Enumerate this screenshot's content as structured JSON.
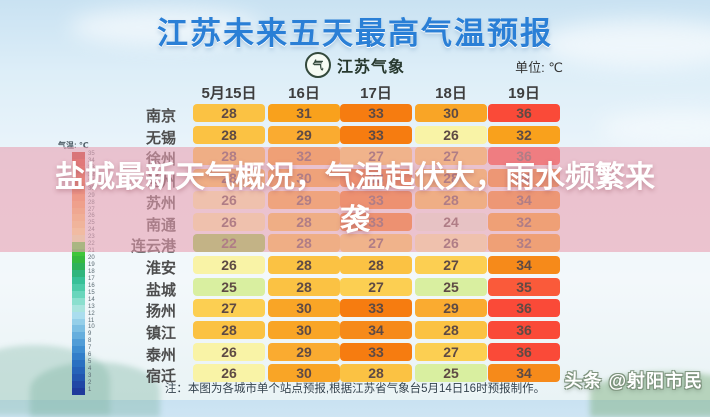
{
  "header": {
    "title": "江苏未来五天最高气温预报",
    "logo_text": "江苏气象",
    "logo_glyph": "气",
    "unit_label": "单位: ℃"
  },
  "overlay": {
    "headline": "盐城最新天气概况，气温起伏大，雨水频繁来袭"
  },
  "table": {
    "columns": [
      "5月15日",
      "16日",
      "17日",
      "18日",
      "19日"
    ],
    "rows": [
      {
        "city": "南京",
        "temps": [
          28,
          31,
          33,
          30,
          36
        ]
      },
      {
        "city": "无锡",
        "temps": [
          28,
          29,
          33,
          26,
          32
        ]
      },
      {
        "city": "徐州",
        "temps": [
          28,
          32,
          27,
          27,
          36
        ]
      },
      {
        "city": "常州",
        "temps": [
          28,
          30,
          33,
          28,
          34
        ]
      },
      {
        "city": "苏州",
        "temps": [
          26,
          29,
          33,
          28,
          34
        ]
      },
      {
        "city": "南通",
        "temps": [
          26,
          28,
          33,
          24,
          32
        ]
      },
      {
        "city": "连云港",
        "temps": [
          22,
          28,
          27,
          26,
          32
        ]
      },
      {
        "city": "淮安",
        "temps": [
          26,
          28,
          28,
          27,
          34
        ]
      },
      {
        "city": "盐城",
        "temps": [
          25,
          28,
          27,
          25,
          35
        ]
      },
      {
        "city": "扬州",
        "temps": [
          27,
          30,
          33,
          29,
          36
        ]
      },
      {
        "city": "镇江",
        "temps": [
          28,
          30,
          34,
          28,
          36
        ]
      },
      {
        "city": "泰州",
        "temps": [
          26,
          29,
          33,
          27,
          36
        ]
      },
      {
        "city": "宿迁",
        "temps": [
          26,
          30,
          28,
          25,
          34
        ]
      }
    ]
  },
  "temp_colors": {
    "36": "#fa4a38",
    "35": "#fa5a3a",
    "34": "#f68a1a",
    "33": "#f67c10",
    "32": "#f9a11c",
    "31": "#f9a11c",
    "30": "#f9a526",
    "29": "#faab30",
    "28": "#fbc243",
    "27": "#fccf52",
    "26": "#f9f3a6",
    "25": "#d9efa0",
    "24": "#e7f5df",
    "22": "#8ccf45"
  },
  "colorbar": {
    "title": "气温: ℃",
    "max": 35,
    "min": 1,
    "colors": [
      "#c43524",
      "#d63f26",
      "#e24c2b",
      "#ec5c31",
      "#f16d38",
      "#f57e40",
      "#f89049",
      "#faa153",
      "#fbb25f",
      "#fcc26b",
      "#fdd278",
      "#fee389",
      "#eef0a6",
      "#4fd63a",
      "#3fc639",
      "#36b93e",
      "#2fb259",
      "#2fb57d",
      "#37c098",
      "#4dcba9",
      "#69d6bc",
      "#8bdfce",
      "#a9e4de",
      "#aaddee",
      "#95cfe9",
      "#7dbfe3",
      "#66aedd",
      "#519dd7",
      "#3f8ed1",
      "#327ec9",
      "#2a70c1",
      "#2663b9",
      "#2356af",
      "#2147a5",
      "#1f3a9b"
    ]
  },
  "footer": {
    "note": "注：本图为各城市单个站点预报,根据江苏省气象台5月14日16时预报制作。"
  },
  "watermark": {
    "text": "头条 @射阳市民"
  },
  "chart_data": {
    "type": "table",
    "title": "江苏未来五天最高气温预报",
    "unit": "℃",
    "categories": [
      "5月15日",
      "16日",
      "17日",
      "18日",
      "19日"
    ],
    "series": [
      {
        "name": "南京",
        "values": [
          28,
          31,
          33,
          30,
          36
        ]
      },
      {
        "name": "无锡",
        "values": [
          28,
          29,
          33,
          26,
          32
        ]
      },
      {
        "name": "徐州",
        "values": [
          28,
          32,
          27,
          27,
          36
        ]
      },
      {
        "name": "常州",
        "values": [
          28,
          30,
          33,
          28,
          34
        ]
      },
      {
        "name": "苏州",
        "values": [
          26,
          29,
          33,
          28,
          34
        ]
      },
      {
        "name": "南通",
        "values": [
          26,
          28,
          33,
          24,
          32
        ]
      },
      {
        "name": "连云港",
        "values": [
          22,
          28,
          27,
          26,
          32
        ]
      },
      {
        "name": "淮安",
        "values": [
          26,
          28,
          28,
          27,
          34
        ]
      },
      {
        "name": "盐城",
        "values": [
          25,
          28,
          27,
          25,
          35
        ]
      },
      {
        "name": "扬州",
        "values": [
          27,
          30,
          33,
          29,
          36
        ]
      },
      {
        "name": "镇江",
        "values": [
          28,
          30,
          34,
          28,
          36
        ]
      },
      {
        "name": "泰州",
        "values": [
          26,
          29,
          33,
          27,
          36
        ]
      },
      {
        "name": "宿迁",
        "values": [
          26,
          30,
          28,
          25,
          34
        ]
      }
    ],
    "colorbar_range": [
      1,
      35
    ]
  }
}
